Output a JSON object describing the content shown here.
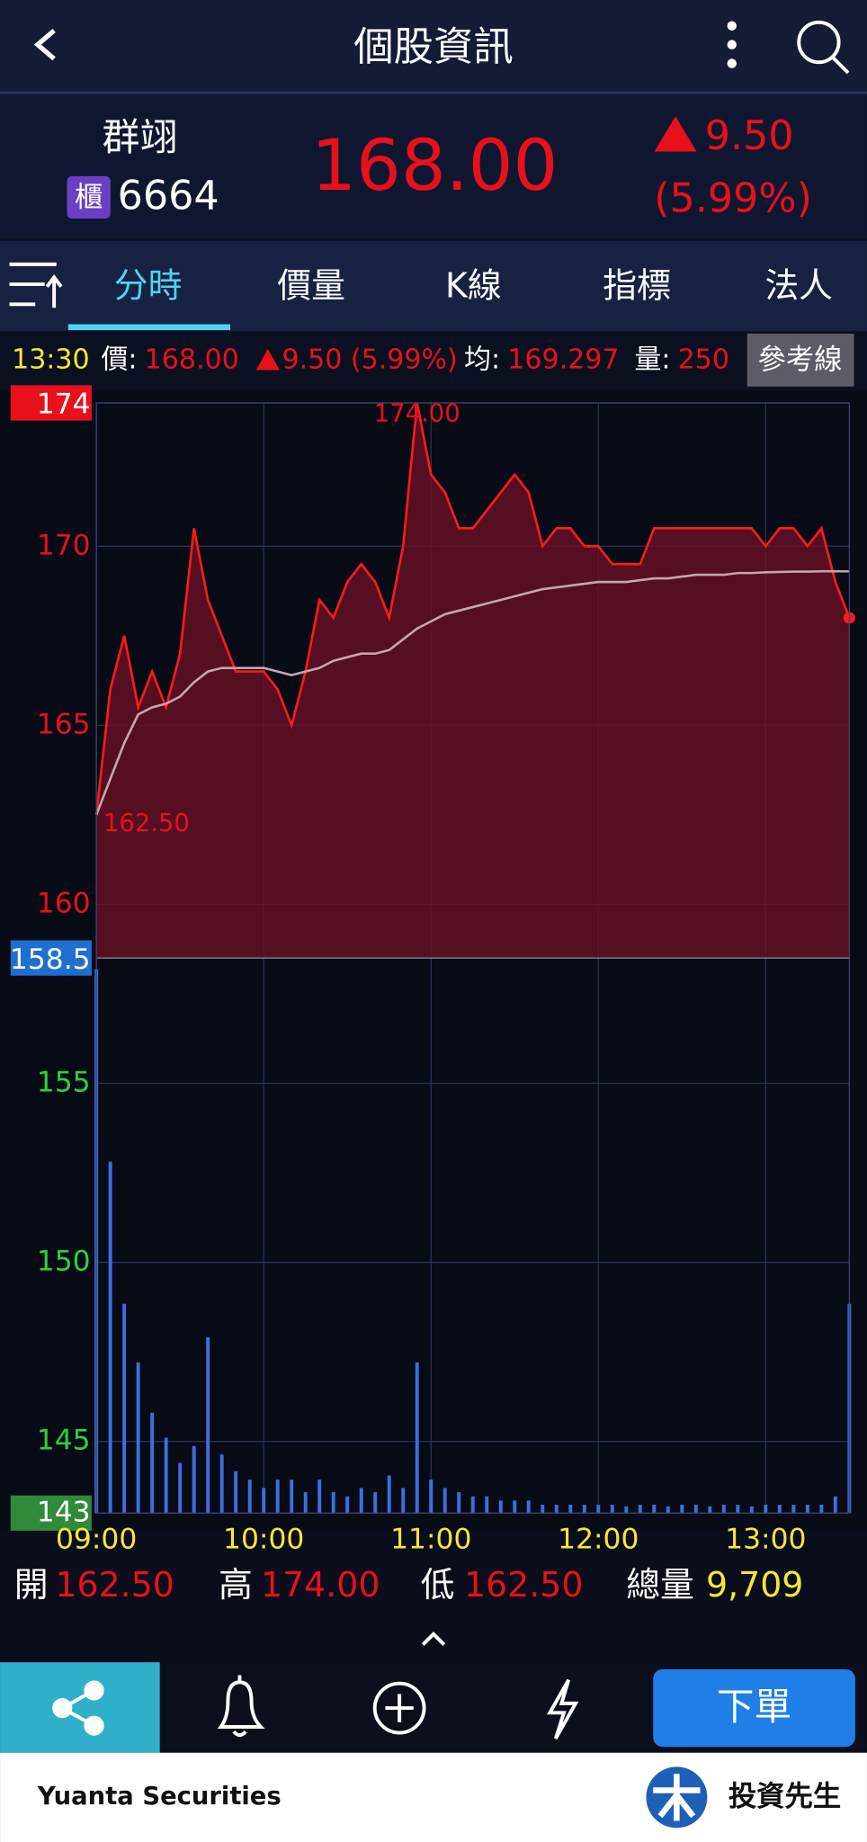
{
  "header": {
    "title": "個股資訊"
  },
  "stock": {
    "name": "群翊",
    "market": "櫃",
    "code": "6664",
    "price": "168.00",
    "change": "9.50",
    "change_pct": "(5.99%)"
  },
  "tabs": [
    "分時",
    "價量",
    "K線",
    "指標",
    "法人"
  ],
  "info": {
    "time": "13:30",
    "price_label": "價:",
    "price": "168.00",
    "change": "9.50 (5.99%)",
    "avg_label": "均:",
    "avg": "169.297",
    "vol_label": "量:",
    "vol": "250",
    "ref_button": "參考線"
  },
  "chart_data": {
    "type": "line",
    "x": [
      "09:00",
      "09:05",
      "09:10",
      "09:15",
      "09:20",
      "09:25",
      "09:30",
      "09:35",
      "09:40",
      "09:45",
      "09:50",
      "09:55",
      "10:00",
      "10:05",
      "10:10",
      "10:15",
      "10:20",
      "10:25",
      "10:30",
      "10:35",
      "10:40",
      "10:45",
      "10:50",
      "10:55",
      "11:00",
      "11:05",
      "11:10",
      "11:15",
      "11:20",
      "11:25",
      "11:30",
      "11:35",
      "11:40",
      "11:45",
      "11:50",
      "11:55",
      "12:00",
      "12:05",
      "12:10",
      "12:15",
      "12:20",
      "12:25",
      "12:30",
      "12:35",
      "12:40",
      "12:45",
      "12:50",
      "12:55",
      "13:00",
      "13:05",
      "13:10",
      "13:15",
      "13:20",
      "13:25",
      "13:30"
    ],
    "series": [
      {
        "color": "#ff1a1a",
        "values": [
          162.5,
          166,
          167.5,
          165.5,
          166.5,
          165.5,
          167,
          170.5,
          168.5,
          167.5,
          166.5,
          166.5,
          166.5,
          166,
          165,
          166.5,
          168.5,
          168,
          169,
          169.5,
          169,
          168,
          170,
          174,
          172,
          171.5,
          170.5,
          170.5,
          171,
          171.5,
          172,
          171.5,
          170,
          170.5,
          170.5,
          170,
          170,
          169.5,
          169.5,
          169.5,
          170.5,
          170.5,
          170.5,
          170.5,
          170.5,
          170.5,
          170.5,
          170.5,
          170,
          170.5,
          170.5,
          170,
          170.5,
          169,
          168
        ]
      },
      {
        "color": "#c9a3ad",
        "values": [
          162.5,
          163.5,
          164.5,
          165.3,
          165.5,
          165.6,
          165.8,
          166.2,
          166.5,
          166.6,
          166.6,
          166.6,
          166.6,
          166.5,
          166.4,
          166.5,
          166.6,
          166.8,
          166.9,
          167.0,
          167.0,
          167.1,
          167.4,
          167.7,
          167.9,
          168.1,
          168.2,
          168.3,
          168.4,
          168.5,
          168.6,
          168.7,
          168.8,
          168.85,
          168.9,
          168.95,
          169.0,
          169.0,
          169.0,
          169.05,
          169.1,
          169.1,
          169.15,
          169.2,
          169.2,
          169.2,
          169.25,
          169.25,
          169.27,
          169.28,
          169.29,
          169.29,
          169.3,
          169.3,
          169.297
        ]
      }
    ],
    "volume": {
      "color": "#3d6fe0",
      "values": [
        650,
        420,
        250,
        180,
        120,
        90,
        60,
        80,
        210,
        70,
        50,
        40,
        30,
        40,
        40,
        25,
        40,
        25,
        20,
        30,
        25,
        45,
        30,
        180,
        40,
        30,
        25,
        20,
        20,
        15,
        15,
        15,
        10,
        10,
        10,
        10,
        10,
        10,
        8,
        10,
        10,
        8,
        10,
        10,
        8,
        10,
        10,
        8,
        10,
        10,
        10,
        10,
        10,
        20,
        250
      ]
    },
    "ref": 158.5,
    "xlim": [
      "09:00",
      "13:30"
    ],
    "xticks": [
      "09:00",
      "10:00",
      "11:00",
      "12:00",
      "13:00"
    ],
    "ylim": [
      143,
      174
    ],
    "yticks": [
      143,
      145,
      150,
      155,
      160,
      165,
      170,
      174
    ],
    "grid": true,
    "annotations": [
      {
        "label": "174.00",
        "x": "10:55",
        "y": 174
      },
      {
        "label": "162.50",
        "x": "09:00",
        "y": 162.5
      }
    ]
  },
  "summary": [
    {
      "label": "開",
      "value": "162.50"
    },
    {
      "label": "高",
      "value": "174.00"
    },
    {
      "label": "低",
      "value": "162.50"
    },
    {
      "label": "總量",
      "value": "9,709"
    }
  ],
  "nav": {
    "order": "下單"
  },
  "footer": {
    "brand": "Yuanta Securities",
    "logo_text": "投資先生"
  }
}
